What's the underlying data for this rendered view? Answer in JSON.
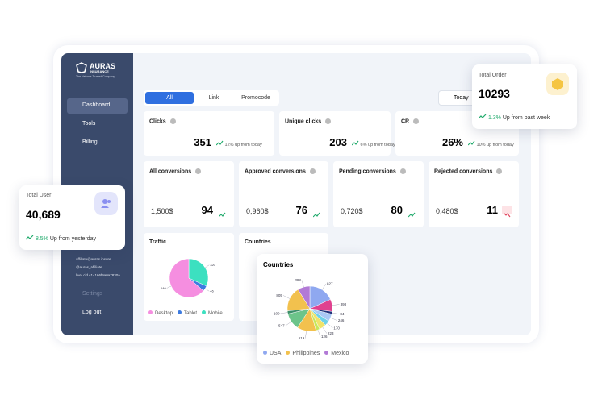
{
  "brand": {
    "name": "AURAS",
    "sub": "INSURANCE",
    "tagline": "The Nation's Trusted Company"
  },
  "nav": [
    "Dashboard",
    "Tools",
    "Billing"
  ],
  "contact": [
    "affiliate@auras.insure",
    "@auras_affiliate",
    "live:.cid.c14166f9a0a7830a"
  ],
  "footer_nav": [
    "Settings",
    "Log out"
  ],
  "tabs": [
    "All",
    "Link",
    "Promocode"
  ],
  "date_filter": "Today",
  "stats": [
    {
      "label": "Clicks",
      "value": "351",
      "change": "12% up from today"
    },
    {
      "label": "Unique clicks",
      "value": "203",
      "change": "6% up from today"
    },
    {
      "label": "CR",
      "value": "26%",
      "change": "10% up from today"
    }
  ],
  "conversions": [
    {
      "label": "All conversions",
      "amount": "1,500$",
      "count": "94",
      "trend": "up"
    },
    {
      "label": "Approved conversions",
      "amount": "0,960$",
      "count": "76",
      "trend": "up"
    },
    {
      "label": "Pending conversions",
      "amount": "0,720$",
      "count": "80",
      "trend": "up"
    },
    {
      "label": "Rejected conversions",
      "amount": "0,480$",
      "count": "11",
      "trend": "down"
    }
  ],
  "traffic": {
    "title": "Traffic",
    "type": "pie",
    "values": [
      320,
      46,
      640
    ],
    "colors": [
      "#3ce0c0",
      "#3d7be0",
      "#f58ee0"
    ],
    "legend": [
      {
        "name": "Desktop",
        "color": "#f58ee0"
      },
      {
        "name": "Tablet",
        "color": "#3d7be0"
      },
      {
        "name": "Mobile",
        "color": "#3ce0c0"
      }
    ]
  },
  "countries_card": {
    "title": "Countries"
  },
  "countries_popup": {
    "title": "Countries",
    "type": "pie",
    "values": [
      827,
      398,
      84,
      246,
      170,
      223,
      126,
      619,
      547,
      100,
      805,
      398
    ],
    "colors": [
      "#8fa8f0",
      "#e0418f",
      "#1f2f7a",
      "#a9c8f5",
      "#6ed1e8",
      "#f0e36a",
      "#c6e85a",
      "#f2c14e",
      "#6cc48a",
      "#3c8f6a",
      "#f2c14e",
      "#b27ad6"
    ],
    "legend": [
      {
        "name": "USA",
        "color": "#8fa8f0"
      },
      {
        "name": "Philippines",
        "color": "#f2c14e"
      },
      {
        "name": "Mexico",
        "color": "#b27ad6"
      }
    ]
  },
  "total_order": {
    "title": "Total Order",
    "value": "10293",
    "change": "1.3%",
    "note": "Up from past week"
  },
  "total_user": {
    "title": "Total User",
    "value": "40,689",
    "change": "8.5%",
    "note": "Up from yesterday"
  }
}
